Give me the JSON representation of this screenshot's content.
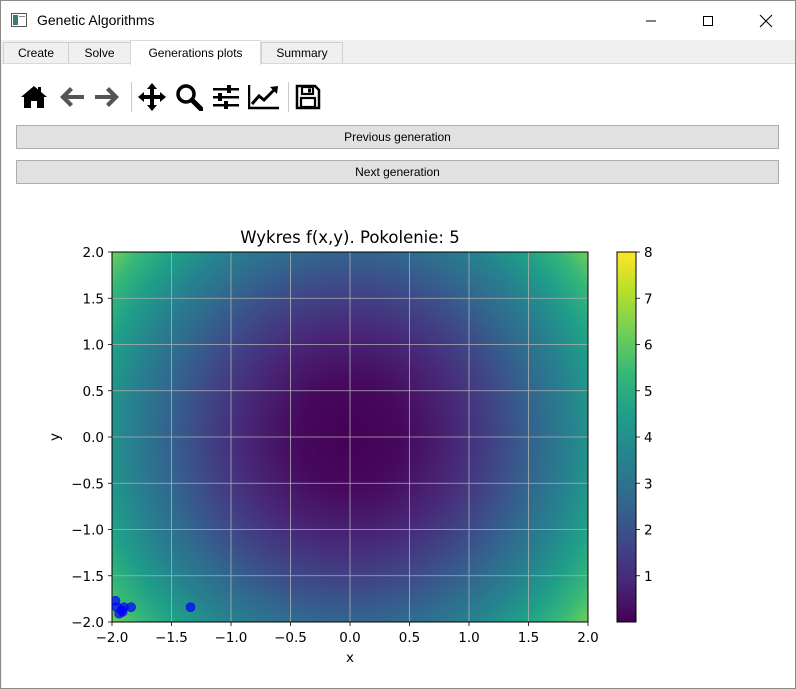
{
  "window": {
    "title": "Genetic Algorithms"
  },
  "tabs": [
    {
      "label": "Create"
    },
    {
      "label": "Solve"
    },
    {
      "label": "Generations plots"
    },
    {
      "label": "Summary"
    }
  ],
  "toolbar": {
    "icons": [
      "home-icon",
      "back-icon",
      "forward-icon",
      "pan-icon",
      "zoom-icon",
      "configure-subplots-icon",
      "edit-axis-icon",
      "save-icon"
    ]
  },
  "buttons": {
    "previous": "Previous generation",
    "next": "Next generation"
  },
  "chart_data": {
    "type": "heatmap",
    "title": "Wykres f(x,y). Pokolenie: 5",
    "xlabel": "x",
    "ylabel": "y",
    "xlim": [
      -2.0,
      2.0
    ],
    "ylim": [
      -2.0,
      2.0
    ],
    "x_ticks": [
      "−2.0",
      "−1.5",
      "−1.0",
      "−0.5",
      "0.0",
      "0.5",
      "1.0",
      "1.5",
      "2.0"
    ],
    "y_ticks": [
      "2.0",
      "1.5",
      "1.0",
      "0.5",
      "0.0",
      "−0.5",
      "−1.0",
      "−1.5",
      "−2.0"
    ],
    "colorbar_ticks": [
      "8",
      "7",
      "6",
      "5",
      "4",
      "3",
      "2",
      "1"
    ],
    "colorbar_range": [
      0,
      8
    ],
    "colormap": [
      "#440154",
      "#482878",
      "#3e4989",
      "#31688e",
      "#26828e",
      "#1f9e89",
      "#35b779",
      "#6ece58",
      "#b5de2b",
      "#fde725"
    ],
    "grid": true,
    "points": [
      {
        "x": -1.97,
        "y": -1.77
      },
      {
        "x": -1.96,
        "y": -1.84
      },
      {
        "x": -1.94,
        "y": -1.91
      },
      {
        "x": -1.92,
        "y": -1.87
      },
      {
        "x": -1.91,
        "y": -1.89
      },
      {
        "x": -1.9,
        "y": -1.84
      },
      {
        "x": -1.84,
        "y": -1.84
      },
      {
        "x": -1.34,
        "y": -1.84
      }
    ],
    "point_color": "#0000ff"
  }
}
